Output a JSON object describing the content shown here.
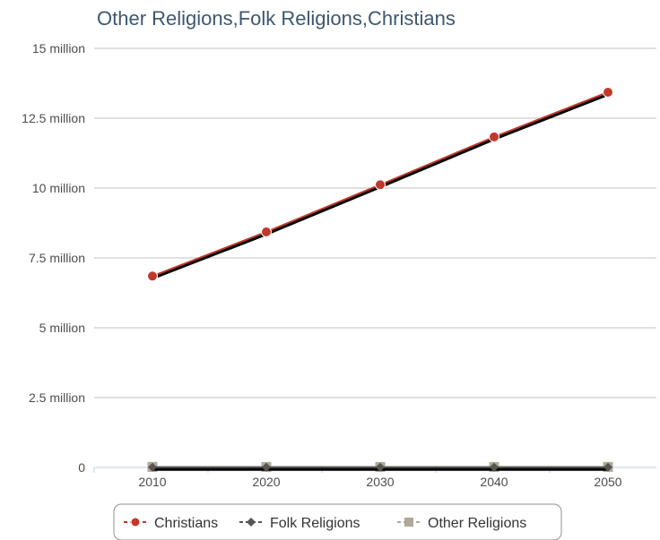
{
  "chart_data": {
    "type": "line",
    "title": "Other Religions,Folk Religions,Christians",
    "xlabel": "",
    "ylabel": "",
    "categories": [
      "2010",
      "2020",
      "2030",
      "2040",
      "2050"
    ],
    "y_ticks": [
      {
        "value": 0,
        "label": "0"
      },
      {
        "value": 2500000,
        "label": "2.5 million"
      },
      {
        "value": 5000000,
        "label": "5 million"
      },
      {
        "value": 7500000,
        "label": "7.5 million"
      },
      {
        "value": 10000000,
        "label": "10 million"
      },
      {
        "value": 12500000,
        "label": "12.5 million"
      },
      {
        "value": 15000000,
        "label": "15 million"
      }
    ],
    "ylim": [
      0,
      15000000
    ],
    "grid": true,
    "legend_position": "bottom",
    "series": [
      {
        "name": "Christians",
        "values": [
          6850000,
          8430000,
          10120000,
          11830000,
          13430000
        ],
        "color": "#c0392b",
        "marker": "circle"
      },
      {
        "name": "Folk Religions",
        "values": [
          10000,
          10000,
          10000,
          10000,
          10000
        ],
        "color": "#555555",
        "marker": "diamond"
      },
      {
        "name": "Other Religions",
        "values": [
          20000,
          20000,
          20000,
          20000,
          20000
        ],
        "color": "#b0a898",
        "marker": "square"
      }
    ]
  }
}
